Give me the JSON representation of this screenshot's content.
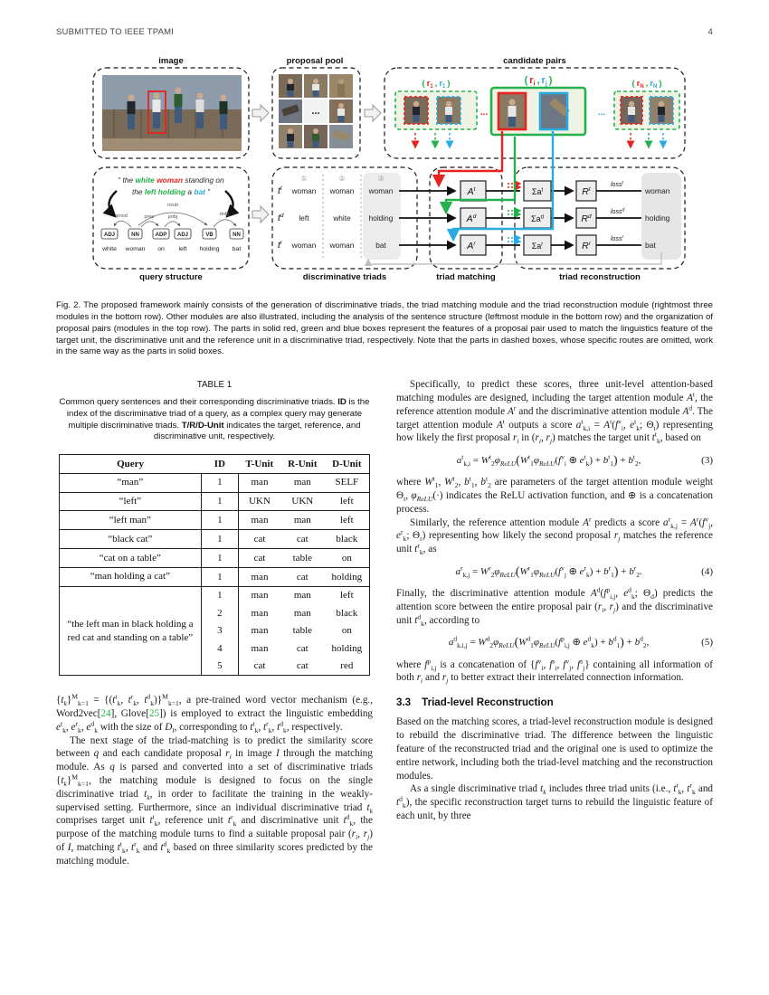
{
  "page": {
    "header_left": "SUBMITTED TO IEEE TPAMI",
    "page_number": "4"
  },
  "colors": {
    "red": "#e8221f",
    "green": "#22b14c",
    "blue": "#29abe2",
    "cite_green": "#22b14c"
  },
  "figure": {
    "labels": {
      "image": "image",
      "proposal_pool": "proposal pool",
      "candidate_pairs": "candidate pairs",
      "query_structure": "query structure",
      "discriminative_triads": "discriminative triads",
      "triad_matching": "triad matching",
      "triad_reconstruction": "triad reconstruction"
    },
    "pair_open": "(",
    "pair_comma": ",",
    "pair_close": ")",
    "pairs": [
      {
        "a": "r",
        "a_sub": "1",
        "b": "r",
        "b_sub": "1"
      },
      {
        "a": "r",
        "a_sub": "i",
        "b": "r",
        "b_sub": "j"
      },
      {
        "a": "r",
        "a_sub": "N",
        "b": "r",
        "b_sub": "N"
      }
    ],
    "dots_left": "...",
    "dots_right": "...",
    "pool_dots": "...",
    "sentence_line1": [
      {
        "text": "“ the ",
        "color": "#2b2b2b",
        "weight": "normal"
      },
      {
        "text": "white",
        "color": "#22b14c",
        "weight": "bold"
      },
      {
        "text": " ",
        "color": "#2b2b2b",
        "weight": "normal"
      },
      {
        "text": "woman",
        "color": "#e8221f",
        "weight": "bold"
      },
      {
        "text": " standing on",
        "color": "#2b2b2b",
        "weight": "normal"
      }
    ],
    "sentence_line2": [
      {
        "text": "the ",
        "color": "#2b2b2b",
        "weight": "normal"
      },
      {
        "text": "left holding",
        "color": "#22b14c",
        "weight": "bold"
      },
      {
        "text": " a ",
        "color": "#2b2b2b",
        "weight": "normal"
      },
      {
        "text": "bat",
        "color": "#29abe2",
        "weight": "bold"
      },
      {
        "text": " ”",
        "color": "#2b2b2b",
        "weight": "normal"
      }
    ],
    "parse": {
      "tags": [
        "ADJ",
        "NN",
        "ADP",
        "ADJ",
        "VB",
        "NN"
      ],
      "words": [
        "white",
        "woman",
        "on",
        "left",
        "holding",
        "bat"
      ],
      "arcs": [
        "amod",
        "nsub",
        "prep",
        "pobj",
        "dobj"
      ]
    },
    "triads": {
      "row_labels": [
        [
          "t",
          "t"
        ],
        [
          "t",
          "d"
        ],
        [
          "t",
          "r"
        ]
      ],
      "col_heads": [
        "①",
        "②",
        "③"
      ],
      "rows": [
        [
          "woman",
          "woman",
          "woman"
        ],
        [
          "left",
          "white",
          "holding"
        ],
        [
          "woman",
          "woman",
          "bat"
        ]
      ]
    },
    "modules": [
      [
        "A",
        "t"
      ],
      [
        "A",
        "d"
      ],
      [
        "A",
        "r"
      ]
    ],
    "recon": [
      {
        "sum": "Σa",
        "sup": "t",
        "rbox": "R",
        "loss": "loss",
        "word": "woman"
      },
      {
        "sum": "Σa",
        "sup": "d",
        "rbox": "R",
        "loss": "loss",
        "word": "holding"
      },
      {
        "sum": "Σa",
        "sup": "r",
        "rbox": "R",
        "loss": "loss",
        "word": "bat"
      }
    ]
  },
  "fig_caption": "Fig. 2. The proposed framework mainly consists of the generation of discriminative triads, the triad matching module and the triad reconstruction module (rightmost three modules in the bottom row). Other modules are also illustrated, including the analysis of the sentence structure (leftmost module in the bottom row) and the organization of proposal pairs (modules in the top row). The parts in solid red, green and blue boxes represent the features of a proposal pair used to match the linguistics feature of the target unit, the discriminative unit and the reference unit in a discriminative triad, respectively. Note that the parts in dashed boxes, whose specific routes are omitted, work in the same way as the parts in solid boxes.",
  "table": {
    "title": "TABLE 1",
    "caption_html": "Common query sentences and their corresponding discriminative triads. <b>ID</b> is the index of the discriminative triad of a query, as a complex query may generate multiple discriminative triads. <b>T/R/D-Unit</b> indicates the target, reference, and discriminative unit, respectively.",
    "headers": [
      "Query",
      "ID",
      "T-Unit",
      "R-Unit",
      "D-Unit"
    ],
    "groups": [
      {
        "query": "“man”",
        "entries": [
          {
            "id": "1",
            "t": "man",
            "r": "man",
            "d": "SELF"
          }
        ]
      },
      {
        "query": "“left”",
        "entries": [
          {
            "id": "1",
            "t": "UKN",
            "r": "UKN",
            "d": "left"
          }
        ]
      },
      {
        "query": "“left man”",
        "entries": [
          {
            "id": "1",
            "t": "man",
            "r": "man",
            "d": "left"
          }
        ]
      },
      {
        "query": "“black cat”",
        "entries": [
          {
            "id": "1",
            "t": "cat",
            "r": "cat",
            "d": "black"
          }
        ]
      },
      {
        "query": "“cat on a table”",
        "entries": [
          {
            "id": "1",
            "t": "cat",
            "r": "table",
            "d": "on"
          }
        ]
      },
      {
        "query": "“man holding a cat”",
        "entries": [
          {
            "id": "1",
            "t": "man",
            "r": "cat",
            "d": "holding"
          }
        ]
      },
      {
        "query": "“the left man in black holding a red cat and standing on a table”",
        "entries": [
          {
            "id": "1",
            "t": "man",
            "r": "man",
            "d": "left"
          },
          {
            "id": "2",
            "t": "man",
            "r": "man",
            "d": "black"
          },
          {
            "id": "3",
            "t": "man",
            "r": "table",
            "d": "on"
          },
          {
            "id": "4",
            "t": "man",
            "r": "cat",
            "d": "holding"
          },
          {
            "id": "5",
            "t": "cat",
            "r": "cat",
            "d": "red"
          }
        ]
      }
    ]
  },
  "left_column": {
    "p1_html": "{<i>t<sub>k</sub></i>}<sup>M</sup><sub>k=1</sub> = {(<i>t</i><sup>t</sup><sub>k</sub>, <i>t</i><sup>r</sup><sub>k</sub>, <i>t</i><sup>d</sup><sub>k</sub>)}<sup>M</sup><sub>k=1</sub>, a pre-trained word vector mechanism (e.g., Word2vec[<span class='cite' data-name='citation-24' data-interactable='true'>24</span>], Glove[<span class='cite' data-name='citation-25' data-interactable='true'>25</span>]) is employed to extract the linguistic embedding <i>e</i><sup>t</sup><sub>k</sub>, <i>e</i><sup>r</sup><sub>k</sub>, <i>e</i><sup>d</sup><sub>k</sub> with the size of <i>D<sub>l</sub></i>, corresponding to <i>t</i><sup>t</sup><sub>k</sub>, <i>t</i><sup>r</sup><sub>k</sub>, <i>t</i><sup>d</sup><sub>k</sub>, respectively.",
    "p2_html": "The next stage of the triad-matching is to predict the similarity score between <i>q</i> and each candidate proposal <i>r<sub>i</sub></i> in image <i>I</i> through the matching module. As <i>q</i> is parsed and converted into a set of discriminative triads {<i>t<sub>k</sub></i>}<sup>M</sup><sub>k=1</sub>, the matching module is designed to focus on the single discriminative triad <i>t<sub>k</sub></i>, in order to facilitate the training in the weakly-supervised setting. Furthermore, since an individual discriminative triad <i>t<sub>k</sub></i> comprises target unit <i>t</i><sup>t</sup><sub>k</sub>, reference unit <i>t</i><sup>r</sup><sub>k</sub> and discriminative unit <i>t</i><sup>d</sup><sub>k</sub>, the purpose of the matching module turns to find a suitable proposal pair (<i>r<sub>i</sub></i>, <i>r<sub>j</sub></i>) of <i>I</i>, matching <i>t</i><sup>t</sup><sub>k</sub>, <i>t</i><sup>r</sup><sub>k</sub> and <i>t</i><sup>d</sup><sub>k</sub> based on three similarity scores predicted by the matching module."
  },
  "right_column": {
    "p1_html": "Specifically, to predict these scores, three unit-level attention-based matching modules are designed, including the target attention module <i>A</i><sup>t</sup>, the reference attention module <i>A</i><sup>r</sup> and the discriminative attention module <i>A</i><sup>d</sup>. The target attention module <i>A</i><sup>t</sup> outputs a score <i>a</i><sup>t</sup><sub>k,i</sub> = <i>A</i><sup>t</sup>(<i>f</i><sup>v</sup><sub>i</sub>, <i>e</i><sup>t</sup><sub>k</sub>; Θ<sub>t</sub>) representing how likely the first proposal <i>r<sub>i</sub></i> in (<i>r<sub>i</sub></i>, <i>r<sub>j</sub></i>) matches the target unit <i>t</i><sup>t</sup><sub>k</sub>, based on",
    "eq3_html": "<i>a</i><sup>t</sup><sub>k,i</sub> = <i>W</i><sup>t</sup><sub>2</sub><i>φ</i><sub><i>ReLU</i></sub><span class='bp'>(</span><i>W</i><sup>t</sup><sub>1</sub><i>φ</i><sub><i>ReLU</i></sub>(<i>f</i><sup>v</sup><sub>i</sub> ⊕ <i>e</i><sup>t</sup><sub>k</sub>) + <i>b</i><sup>t</sup><sub>1</sub><span class='bp'>)</span> + <i>b</i><sup>t</sup><sub>2</sub>,",
    "eq3_num": "(3)",
    "p2_html": "where <i>W</i><sup>t</sup><sub>1</sub>, <i>W</i><sup>t</sup><sub>2</sub>, <i>b</i><sup>t</sup><sub>1</sub>, <i>b</i><sup>t</sup><sub>2</sub> are parameters of the target attention module weight Θ<sub>t</sub>, <i>φ</i><sub><i>ReLU</i></sub>(·) indicates the ReLU activation function, and ⊕ is a concatenation process.",
    "p3_html": "Similarly, the reference attention module <i>A</i><sup>r</sup> predicts a score <i>a</i><sup>r</sup><sub>k,j</sub> = <i>A</i><sup>r</sup>(<i>f</i><sup>v</sup><sub>j</sub>, <i>e</i><sup>r</sup><sub>k</sub>; Θ<sub>r</sub>) representing how likely the second proposal <i>r<sub>j</sub></i> matches the reference unit <i>t</i><sup>r</sup><sub>k</sub>, as",
    "eq4_html": "<i>a</i><sup>r</sup><sub>k,j</sub> = <i>W</i><sup>r</sup><sub>2</sub><i>φ</i><sub><i>ReLU</i></sub><span class='bp'>(</span><i>W</i><sup>r</sup><sub>1</sub><i>φ</i><sub><i>ReLU</i></sub>(<i>f</i><sup>v</sup><sub>j</sub> ⊕ <i>e</i><sup>r</sup><sub>k</sub>) + <i>b</i><sup>r</sup><sub>1</sub><span class='bp'>)</span> + <i>b</i><sup>r</sup><sub>2</sub>.",
    "eq4_num": "(4)",
    "p4_html": "Finally, the discriminative attention module <i>A</i><sup>d</sup>(<i>f</i><sup>p</sup><sub>i,j</sub>, <i>e</i><sup>d</sup><sub>k</sub>; Θ<sub>d</sub>) predicts the attention score between the entire proposal pair (<i>r<sub>i</sub></i>, <i>r<sub>j</sub></i>) and the discriminative unit <i>t</i><sup>d</sup><sub>k</sub>, according to",
    "eq5_html": "<i>a</i><sup>d</sup><sub>k,i,j</sub> = <i>W</i><sup>d</sup><sub>2</sub><i>φ</i><sub><i>ReLU</i></sub><span class='bp'>(</span><i>W</i><sup>d</sup><sub>1</sub><i>φ</i><sub><i>ReLU</i></sub>(<i>f</i><sup>p</sup><sub>i,j</sub> ⊕ <i>e</i><sup>d</sup><sub>k</sub>) + <i>b</i><sup>d</sup><sub>1</sub><span class='bp'>)</span> + <i>b</i><sup>d</sup><sub>2</sub>,",
    "eq5_num": "(5)",
    "p5_html": "where <i>f</i><sup>p</sup><sub>i,j</sub> is a concatenation of {<i>f</i><sup>v</sup><sub>i</sub>, <i>f</i><sup>s</sup><sub>i</sub>, <i>f</i><sup>v</sup><sub>j</sub>, <i>f</i><sup>s</sup><sub>j</sub>} containing all information of both <i>r<sub>i</sub></i> and <i>r<sub>j</sub></i> to better extract their interrelated connection information.",
    "section_num": "3.3",
    "section_title": "Triad-level Reconstruction",
    "p6_html": "Based on the matching scores, a triad-level reconstruction module is designed to rebuild the discriminative triad. The difference between the linguistic feature of the reconstructed triad and the original one is used to optimize the entire network, including both the triad-level matching and the reconstruction modules.",
    "p7_html": "As a single discriminative triad <i>t<sub>k</sub></i> includes three triad units (i.e., <i>t</i><sup>t</sup><sub>k</sub>, <i>t</i><sup>r</sup><sub>k</sub> and <i>t</i><sup>d</sup><sub>k</sub>), the specific reconstruction target turns to rebuild the linguistic feature of each unit, by three"
  }
}
